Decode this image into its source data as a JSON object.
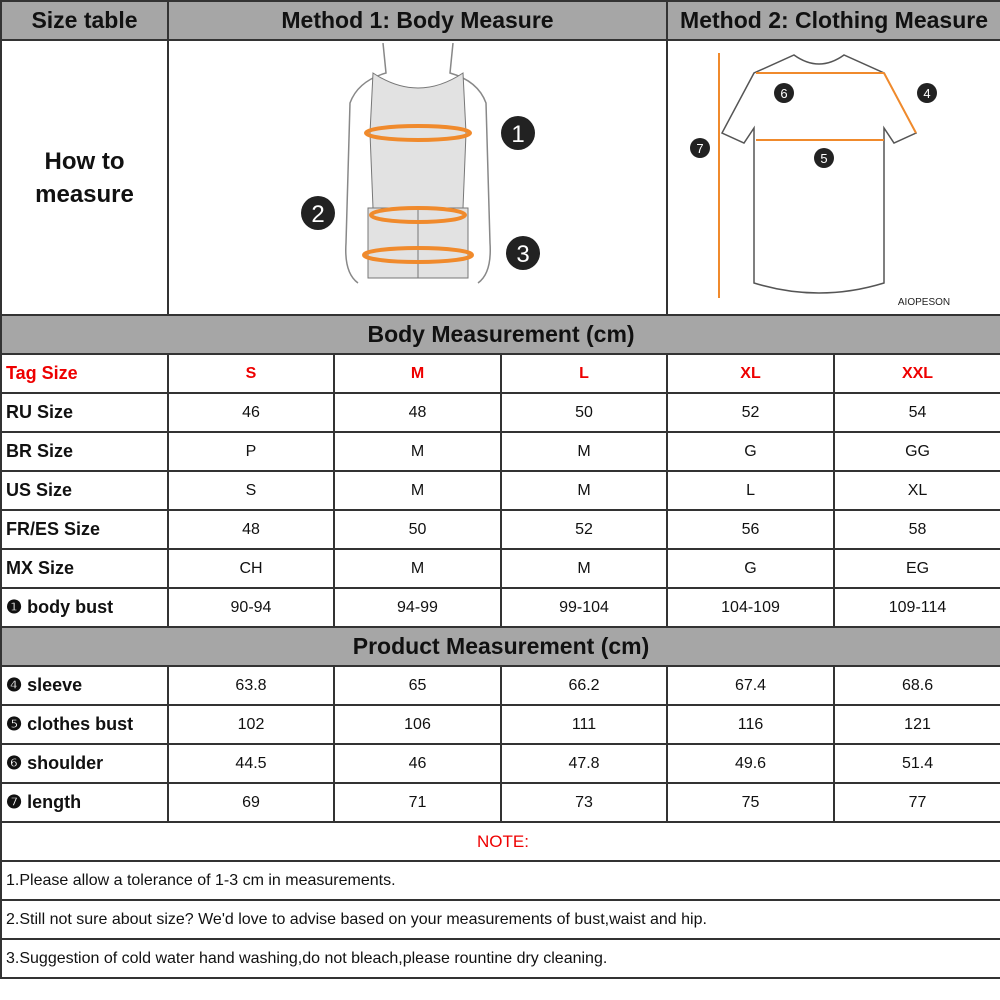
{
  "header": {
    "size_table": "Size table",
    "method1": "Method 1: Body  Measure",
    "method2": "Method 2: Clothing Measure"
  },
  "how_to_measure": [
    "How to",
    "measure"
  ],
  "illustrations": {
    "body_markers": [
      "1",
      "2",
      "3"
    ],
    "shirt_markers": [
      "4",
      "5",
      "6",
      "7"
    ],
    "brand": "AIOPESON",
    "accent_color": "#f08a2c"
  },
  "body_section": {
    "title": "Body Measurement (cm)",
    "rows": [
      {
        "label": "Tag Size",
        "values": [
          "S",
          "M",
          "L",
          "XL",
          "XXL"
        ]
      },
      {
        "label": "RU Size",
        "values": [
          "46",
          "48",
          "50",
          "52",
          "54"
        ]
      },
      {
        "label": "BR Size",
        "values": [
          "P",
          "M",
          "M",
          "G",
          "GG"
        ]
      },
      {
        "label": "US Size",
        "values": [
          "S",
          "M",
          "M",
          "L",
          "XL"
        ]
      },
      {
        "label": "FR/ES Size",
        "values": [
          "48",
          "50",
          "52",
          "56",
          "58"
        ]
      },
      {
        "label": "MX Size",
        "values": [
          "CH",
          "M",
          "M",
          "G",
          "EG"
        ]
      },
      {
        "label": "❶ body bust",
        "values": [
          "90-94",
          "94-99",
          "99-104",
          "104-109",
          "109-114"
        ]
      }
    ]
  },
  "product_section": {
    "title": "Product Measurement (cm)",
    "rows": [
      {
        "label": "❹ sleeve",
        "values": [
          "63.8",
          "65",
          "66.2",
          "67.4",
          "68.6"
        ]
      },
      {
        "label": "❺ clothes bust",
        "values": [
          "102",
          "106",
          "111",
          "116",
          "121"
        ]
      },
      {
        "label": "❻ shoulder",
        "values": [
          "44.5",
          "46",
          "47.8",
          "49.6",
          "51.4"
        ]
      },
      {
        "label": "❼ length",
        "values": [
          "69",
          "71",
          "73",
          "75",
          "77"
        ]
      }
    ]
  },
  "notes": {
    "title": "NOTE:",
    "items": [
      "1.Please allow a tolerance of 1-3 cm in measurements.",
      "2.Still not sure about size? We'd love to advise based on your measurements of bust,waist and hip.",
      "3.Suggestion of cold water hand washing,do not bleach,please rountine dry cleaning."
    ]
  }
}
